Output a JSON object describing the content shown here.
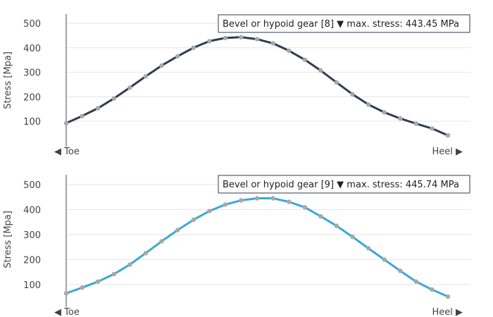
{
  "chart_data": [
    {
      "type": "line",
      "legend": "Bevel or hypoid gear [8] ▼ max. stress: 443.45 MPa",
      "ylabel": "Stress [Mpa]",
      "x_left_label": "◀ Toe",
      "x_right_label": "Heel ▶",
      "yticks": [
        "100",
        "200",
        "300",
        "400",
        "500"
      ],
      "ylim": [
        0,
        550
      ],
      "grid": true,
      "legend_position": "top-right",
      "color": "#2d3e50",
      "series": [
        {
          "values": [
            92,
            121,
            153,
            193,
            237,
            283,
            327,
            365,
            400,
            427,
            440,
            443,
            435,
            418,
            388,
            351,
            307,
            258,
            210,
            168,
            136,
            111,
            90,
            70,
            42
          ]
        }
      ]
    },
    {
      "type": "line",
      "legend": "Bevel or hypoid gear [9] ▼ max. stress: 445.74 MPa",
      "ylabel": "Stress [Mpa]",
      "x_left_label": "◀ Toe",
      "x_right_label": "Heel ▶",
      "yticks": [
        "100",
        "200",
        "300",
        "400",
        "500"
      ],
      "ylim": [
        0,
        550
      ],
      "grid": true,
      "legend_position": "top-right",
      "color": "#3aa8d8",
      "series": [
        {
          "values": [
            65,
            88,
            112,
            142,
            180,
            226,
            273,
            318,
            359,
            394,
            420,
            437,
            445,
            445,
            431,
            409,
            373,
            335,
            291,
            245,
            200,
            155,
            112,
            80,
            52
          ]
        }
      ]
    }
  ]
}
